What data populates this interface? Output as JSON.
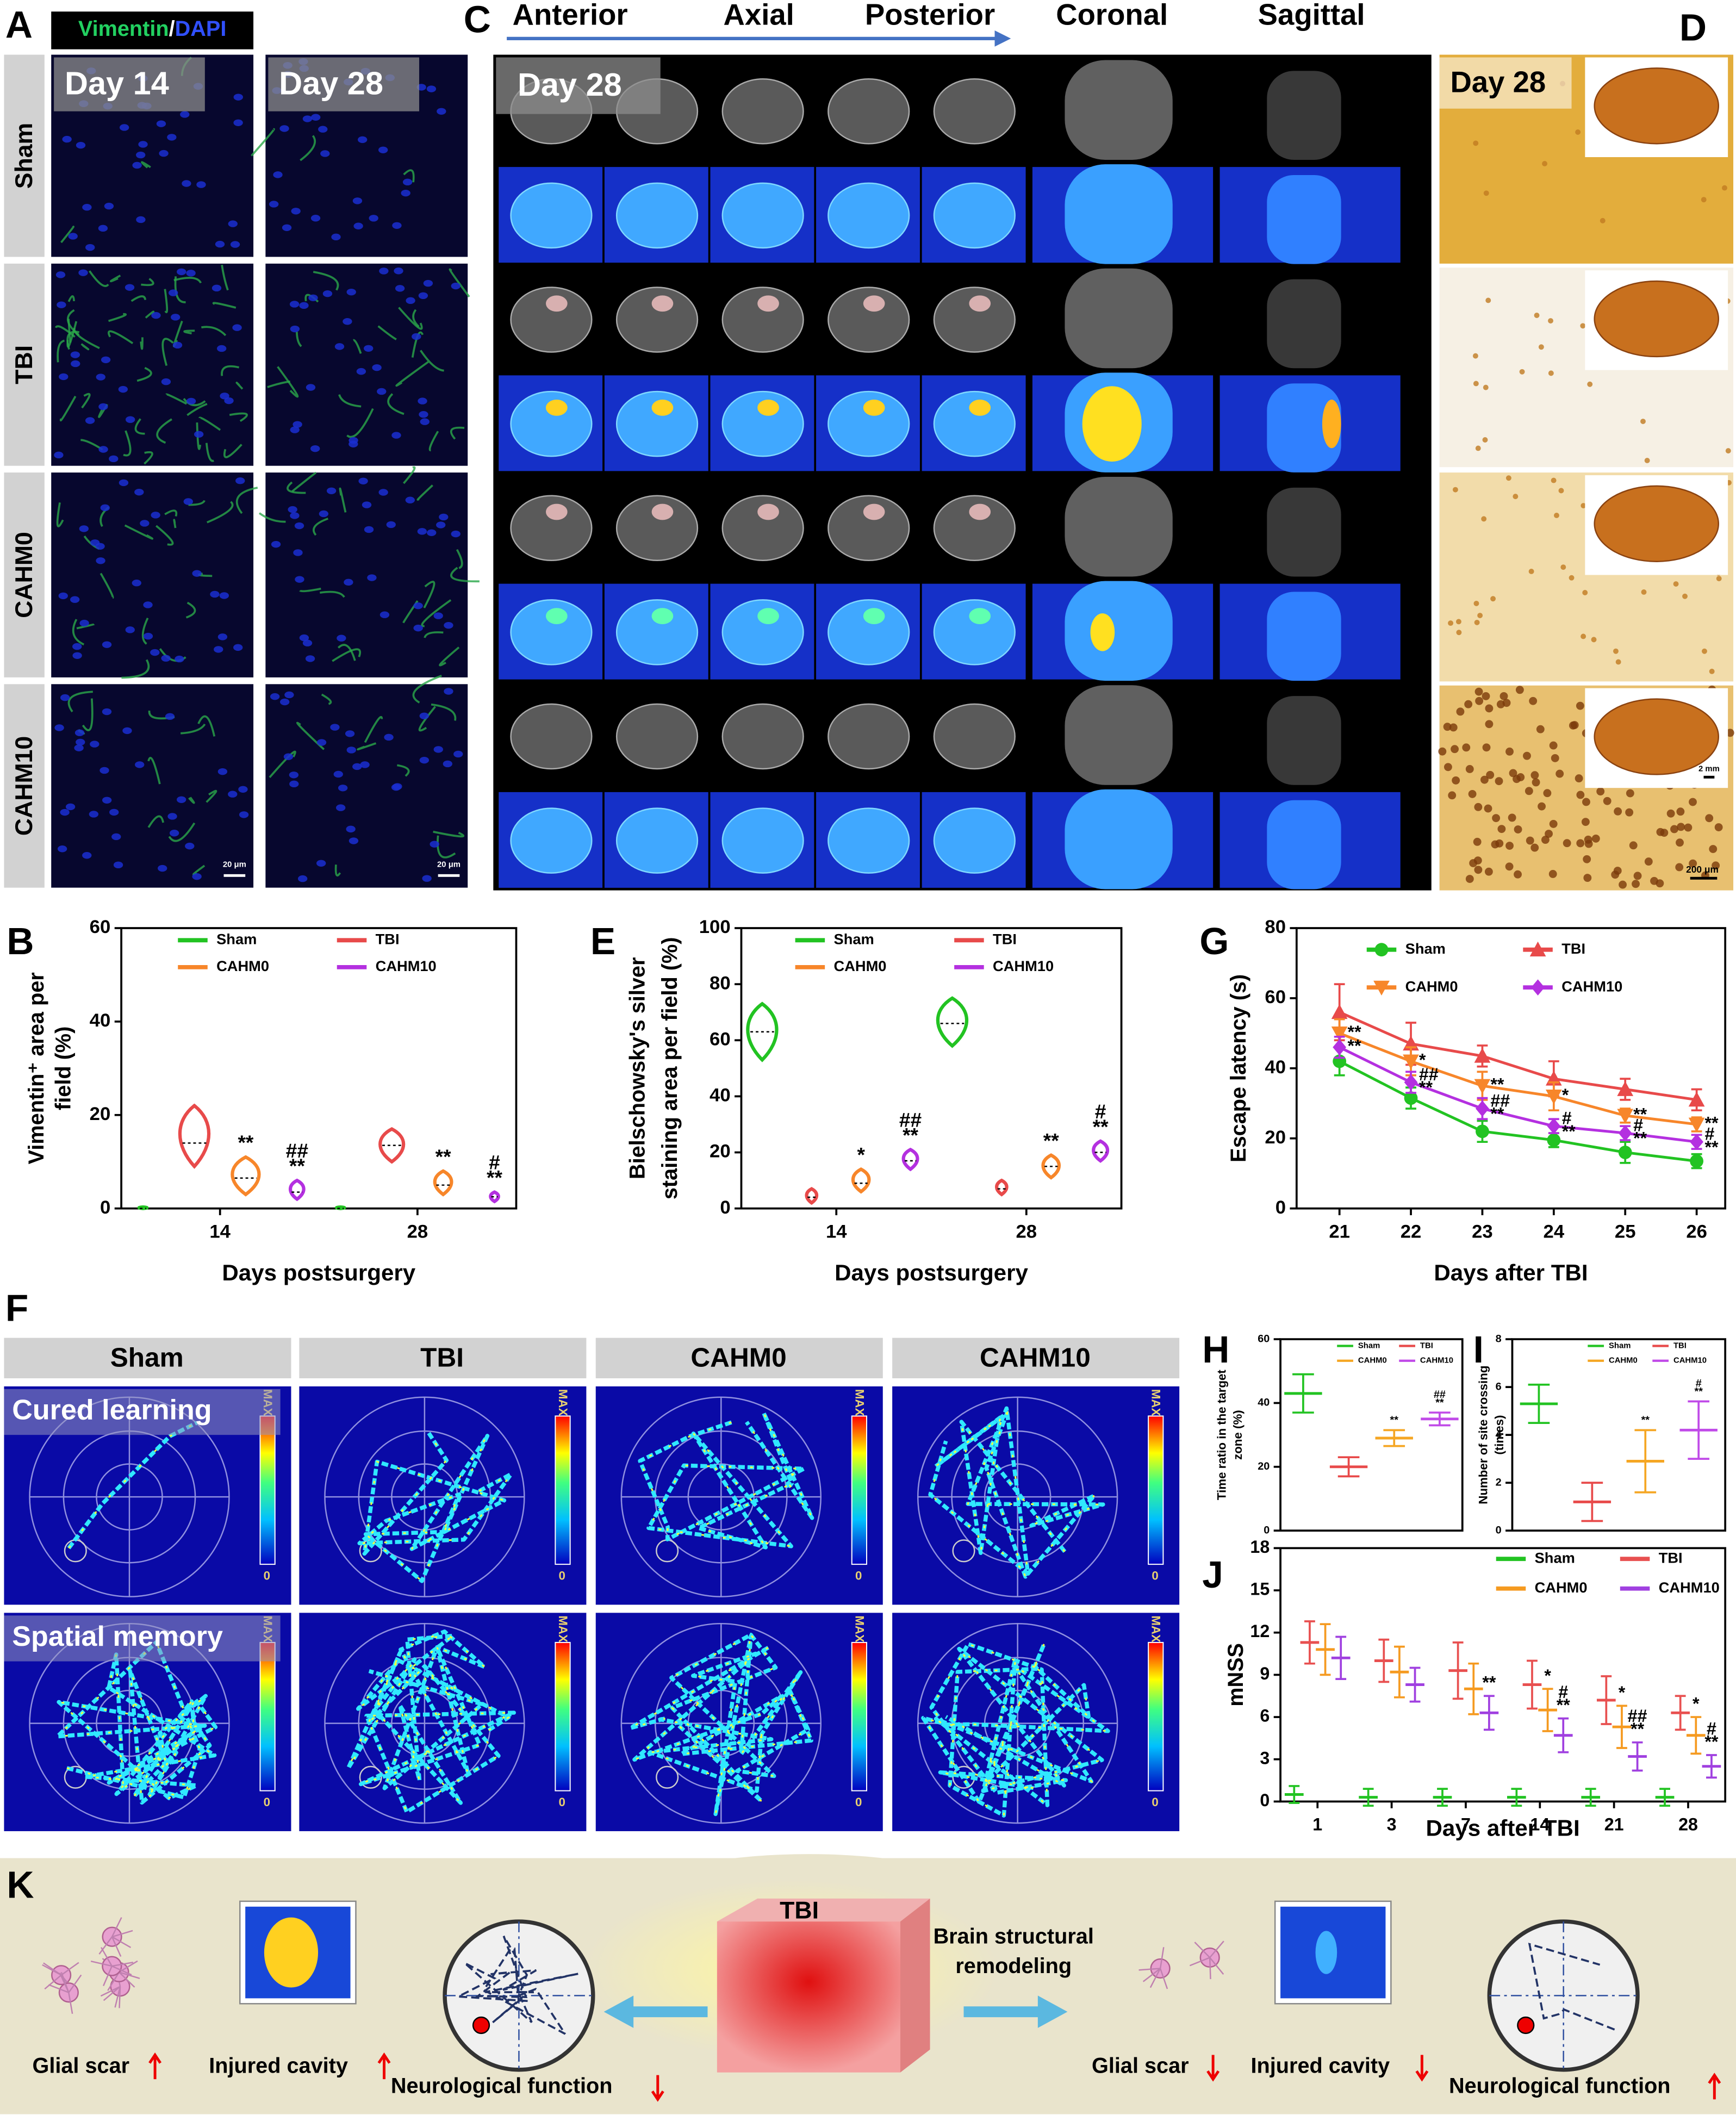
{
  "panel_labels": [
    "A",
    "B",
    "C",
    "D",
    "E",
    "F",
    "G",
    "H",
    "I",
    "J",
    "K"
  ],
  "a": {
    "stain": [
      "Vimentin",
      "/",
      "DAPI"
    ],
    "days": [
      "Day 14",
      "Day 28"
    ],
    "groups": [
      "Sham",
      "TBI",
      "CAHM0",
      "CAHM10"
    ],
    "scale_bar": "20 μm"
  },
  "c": {
    "axes": [
      "Anterior",
      "Axial",
      "Posterior",
      "Coronal",
      "Sagittal"
    ],
    "day": "Day 28"
  },
  "d": {
    "day": "Day 28",
    "scale_small": "2 mm",
    "scale_large": "200 μm"
  },
  "f": {
    "groups": [
      "Sham",
      "TBI",
      "CAHM0",
      "CAHM10"
    ],
    "rows": [
      "Cured learning",
      "Spatial memory"
    ],
    "colorbar": [
      "MAX",
      "0"
    ]
  },
  "k": {
    "center": "TBI",
    "arrow": [
      "Brain structural",
      "remodeling"
    ],
    "left": [
      "Glial scar",
      "Injured cavity",
      "Neurological function"
    ],
    "right": [
      "Glial scar",
      "Injured cavity",
      "Neurological function"
    ]
  },
  "chart_data": [
    {
      "type": "violin",
      "y_label": [
        "Vimentin⁺ area per",
        "field (%)"
      ],
      "x_label": "Days postsurgery",
      "categories": [
        "14",
        "28"
      ],
      "ylim": [
        0,
        60
      ],
      "yticks": [
        0,
        20,
        40,
        60
      ],
      "series": [
        {
          "name": "Sham",
          "color": "#22c322",
          "values": [
            0,
            0
          ],
          "min": [
            0,
            0
          ],
          "max": [
            0.3,
            0.3
          ]
        },
        {
          "name": "TBI",
          "color": "#e84a4a",
          "values": [
            14,
            13.5
          ],
          "min": [
            9,
            10
          ],
          "max": [
            22,
            17
          ]
        },
        {
          "name": "CAHM0",
          "color": "#f7862a",
          "values": [
            6.5,
            5
          ],
          "min": [
            3,
            3
          ],
          "max": [
            11,
            8
          ],
          "sig": [
            [
              "**"
            ],
            [
              "**"
            ]
          ]
        },
        {
          "name": "CAHM10",
          "color": "#b430e0",
          "values": [
            3.5,
            2.5
          ],
          "min": [
            2,
            1.5
          ],
          "max": [
            6,
            3.5
          ],
          "sig": [
            [
              "##",
              "**"
            ],
            [
              "#",
              "**"
            ]
          ]
        }
      ]
    },
    {
      "type": "violin",
      "y_label": [
        "Bielschowsky's silver",
        "staining area per field (%)"
      ],
      "x_label": "Days postsurgery",
      "categories": [
        "14",
        "28"
      ],
      "ylim": [
        0,
        100
      ],
      "yticks": [
        0,
        20,
        40,
        60,
        80,
        100
      ],
      "series": [
        {
          "name": "Sham",
          "color": "#22c322",
          "values": [
            63,
            66
          ],
          "min": [
            53,
            58
          ],
          "max": [
            73,
            75
          ]
        },
        {
          "name": "TBI",
          "color": "#e84a4a",
          "values": [
            4,
            7
          ],
          "min": [
            2,
            5
          ],
          "max": [
            7,
            10
          ]
        },
        {
          "name": "CAHM0",
          "color": "#f7862a",
          "values": [
            9,
            15
          ],
          "min": [
            6,
            11
          ],
          "max": [
            14,
            19
          ],
          "sig": [
            [
              "*"
            ],
            [
              "**"
            ]
          ]
        },
        {
          "name": "CAHM10",
          "color": "#b430e0",
          "values": [
            17,
            20
          ],
          "min": [
            14,
            17
          ],
          "max": [
            21,
            24
          ],
          "sig": [
            [
              "##",
              "**"
            ],
            [
              "#",
              "**"
            ]
          ]
        }
      ]
    },
    {
      "type": "line",
      "y_label": [
        "Escape latency (s)"
      ],
      "x_label": "Days after TBI",
      "x": [
        21,
        22,
        23,
        24,
        25,
        26
      ],
      "xlim": [
        20.4,
        26.4
      ],
      "xticks": [
        21,
        22,
        23,
        24,
        25,
        26
      ],
      "ylim": [
        0,
        80
      ],
      "yticks": [
        0,
        20,
        40,
        60,
        80
      ],
      "series": [
        {
          "name": "Sham",
          "color": "#22c322",
          "marker": "circle",
          "values": [
            42,
            31.5,
            22,
            19.5,
            16,
            13.5
          ],
          "errors": [
            4,
            3,
            3,
            2,
            3,
            2
          ]
        },
        {
          "name": "TBI",
          "color": "#e84a4a",
          "marker": "triangle",
          "values": [
            56,
            47,
            43.5,
            37,
            34,
            31
          ],
          "errors": [
            8,
            6,
            3,
            5,
            3,
            3
          ]
        },
        {
          "name": "CAHM0",
          "color": "#f7862a",
          "marker": "triangle-down",
          "values": [
            50,
            42,
            35,
            32,
            26.5,
            24
          ],
          "errors": [
            4,
            4,
            4,
            4,
            2,
            2
          ],
          "sig": [
            [
              "**"
            ],
            [
              "*"
            ],
            [
              "**"
            ],
            [
              "*"
            ],
            [
              "**"
            ],
            [
              "**"
            ]
          ]
        },
        {
          "name": "CAHM10",
          "color": "#b430e0",
          "marker": "diamond",
          "values": [
            46,
            36,
            28.5,
            23.5,
            21.5,
            19
          ],
          "errors": [
            3,
            3,
            3,
            2,
            2,
            2
          ],
          "sig": [
            [
              "**"
            ],
            [
              "##",
              "**"
            ],
            [
              "##",
              "**"
            ],
            [
              "#",
              "**"
            ],
            [
              "#",
              "**"
            ],
            [
              "#",
              "**"
            ]
          ]
        }
      ]
    },
    {
      "type": "dot",
      "y_label": [
        "Time ratio in the target",
        "zone (%)"
      ],
      "ylim": [
        0,
        60
      ],
      "yticks": [
        0,
        20,
        40,
        60
      ],
      "series": [
        {
          "name": "Sham",
          "color": "#22c322",
          "values": [
            43
          ],
          "errors": [
            6
          ]
        },
        {
          "name": "TBI",
          "color": "#e84a4a",
          "values": [
            20
          ],
          "errors": [
            3
          ]
        },
        {
          "name": "CAHM0",
          "color": "#f5a623",
          "values": [
            29
          ],
          "errors": [
            2.5
          ],
          "sig": [
            [
              "**"
            ]
          ]
        },
        {
          "name": "CAHM10",
          "color": "#c04ae8",
          "values": [
            35
          ],
          "errors": [
            2
          ],
          "sig": [
            [
              "##",
              "**"
            ]
          ]
        }
      ]
    },
    {
      "type": "dot",
      "y_label": [
        "Number of site crossing",
        "(times)"
      ],
      "ylim": [
        0,
        8
      ],
      "yticks": [
        0,
        2,
        4,
        6,
        8
      ],
      "series": [
        {
          "name": "Sham",
          "color": "#22c322",
          "values": [
            5.3
          ],
          "errors": [
            0.8
          ]
        },
        {
          "name": "TBI",
          "color": "#e84a4a",
          "values": [
            1.2
          ],
          "errors": [
            0.8
          ]
        },
        {
          "name": "CAHM0",
          "color": "#f5a623",
          "values": [
            2.9
          ],
          "errors": [
            1.3
          ],
          "sig": [
            [
              "**"
            ]
          ]
        },
        {
          "name": "CAHM10",
          "color": "#c04ae8",
          "values": [
            4.2
          ],
          "errors": [
            1.2
          ],
          "sig": [
            [
              "#",
              "**"
            ]
          ]
        }
      ]
    },
    {
      "type": "dot",
      "y_label": [
        "mNSS"
      ],
      "x_label": "Days after TBI",
      "categories": [
        "1",
        "3",
        "7",
        "14",
        "21",
        "28"
      ],
      "ylim": [
        0,
        18
      ],
      "yticks": [
        0,
        3,
        6,
        9,
        12,
        15,
        18
      ],
      "series": [
        {
          "name": "Sham",
          "color": "#22c322",
          "values": [
            0.5,
            0.3,
            0.3,
            0.3,
            0.3,
            0.3
          ],
          "errors": [
            0.6,
            0.6,
            0.6,
            0.6,
            0.6,
            0.6
          ]
        },
        {
          "name": "TBI",
          "color": "#e85050",
          "values": [
            11.3,
            10,
            9.3,
            8.3,
            7.2,
            6.3
          ],
          "errors": [
            1.5,
            1.5,
            2,
            1.7,
            1.7,
            1.2
          ]
        },
        {
          "name": "CAHM0",
          "color": "#f59a20",
          "values": [
            10.8,
            9.2,
            8,
            6.5,
            5.3,
            4.7
          ],
          "errors": [
            1.8,
            1.8,
            1.8,
            1.5,
            1.5,
            1.3
          ],
          "sig": [
            null,
            null,
            null,
            [
              "*"
            ],
            [
              "*"
            ],
            [
              "*"
            ]
          ]
        },
        {
          "name": "CAHM10",
          "color": "#a040e0",
          "values": [
            10.2,
            8.3,
            6.3,
            4.7,
            3.2,
            2.5
          ],
          "errors": [
            1.5,
            1.2,
            1.2,
            1.2,
            1,
            0.8
          ],
          "sig": [
            null,
            null,
            [
              "**"
            ],
            [
              "#",
              "**"
            ],
            [
              "##",
              "**"
            ],
            [
              "#",
              "**"
            ]
          ]
        }
      ]
    }
  ]
}
